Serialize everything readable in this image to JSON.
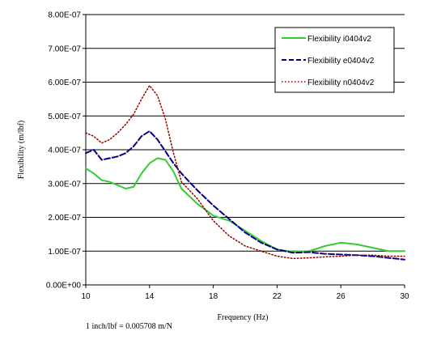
{
  "chart_data": {
    "type": "line",
    "xlabel": "Frequency (Hz)",
    "ylabel": "Flexibility (m/lbf)",
    "xlim": [
      10,
      30
    ],
    "ylim": [
      0,
      8e-07
    ],
    "x_ticks": [
      10,
      14,
      18,
      22,
      26,
      30
    ],
    "x_tick_labels": [
      "10",
      "14",
      "18",
      "22",
      "26",
      "30"
    ],
    "y_ticks": [
      0,
      1e-07,
      2e-07,
      3e-07,
      4e-07,
      5e-07,
      6e-07,
      7e-07,
      8e-07
    ],
    "y_tick_labels": [
      "0.00E+00",
      "1.00E-07",
      "2.00E-07",
      "3.00E-07",
      "4.00E-07",
      "5.00E-07",
      "6.00E-07",
      "7.00E-07",
      "8.00E-07"
    ],
    "grid": "horizontal",
    "legend_position": "top-right",
    "annotation": "1 inch/lbf = 0.005708 m/N",
    "series": [
      {
        "name": "Flexibility i0404v2",
        "color": "#33cc33",
        "style": "solid",
        "x": [
          10,
          10.5,
          11,
          11.5,
          12,
          12.5,
          13,
          13.5,
          14,
          14.5,
          15,
          15.5,
          16,
          17,
          18,
          19,
          20,
          21,
          22,
          23,
          24,
          25,
          26,
          27,
          28,
          29,
          30
        ],
        "y": [
          3.45e-07,
          3.3e-07,
          3.1e-07,
          3.05e-07,
          2.95e-07,
          2.85e-07,
          2.9e-07,
          3.3e-07,
          3.6e-07,
          3.75e-07,
          3.7e-07,
          3.35e-07,
          2.85e-07,
          2.4e-07,
          2.05e-07,
          1.9e-07,
          1.6e-07,
          1.3e-07,
          1.05e-07,
          9.8e-08,
          1e-07,
          1.15e-07,
          1.25e-07,
          1.2e-07,
          1.1e-07,
          1e-07,
          1e-07
        ]
      },
      {
        "name": "Flexibility e0404v2",
        "color": "#000080",
        "style": "dashed",
        "x": [
          10,
          10.5,
          11,
          11.5,
          12,
          12.5,
          13,
          13.5,
          14,
          14.5,
          15,
          15.5,
          16,
          17,
          18,
          19,
          20,
          21,
          22,
          23,
          24,
          25,
          26,
          27,
          28,
          29,
          30
        ],
        "y": [
          3.9e-07,
          4e-07,
          3.7e-07,
          3.75e-07,
          3.8e-07,
          3.9e-07,
          4.1e-07,
          4.4e-07,
          4.55e-07,
          4.3e-07,
          3.95e-07,
          3.6e-07,
          3.3e-07,
          2.8e-07,
          2.35e-07,
          1.95e-07,
          1.55e-07,
          1.25e-07,
          1.05e-07,
          9.5e-08,
          9.7e-08,
          9.2e-08,
          9e-08,
          8.8e-08,
          8.5e-08,
          8e-08,
          7.5e-08
        ]
      },
      {
        "name": "Flexibility n0404v2",
        "color": "#990000",
        "style": "dotted",
        "x": [
          10,
          10.5,
          11,
          11.5,
          12,
          12.5,
          13,
          13.5,
          14,
          14.5,
          15,
          15.5,
          16,
          17,
          18,
          19,
          20,
          21,
          22,
          23,
          24,
          25,
          26,
          27,
          28,
          29,
          30
        ],
        "y": [
          4.5e-07,
          4.4e-07,
          4.2e-07,
          4.3e-07,
          4.5e-07,
          4.75e-07,
          5.05e-07,
          5.5e-07,
          5.9e-07,
          5.6e-07,
          4.9e-07,
          3.9e-07,
          3.05e-07,
          2.55e-07,
          1.9e-07,
          1.45e-07,
          1.15e-07,
          1e-07,
          8.5e-08,
          7.8e-08,
          8e-08,
          8.3e-08,
          8.5e-08,
          8.8e-08,
          8.8e-08,
          8.5e-08,
          8.5e-08
        ]
      }
    ]
  }
}
